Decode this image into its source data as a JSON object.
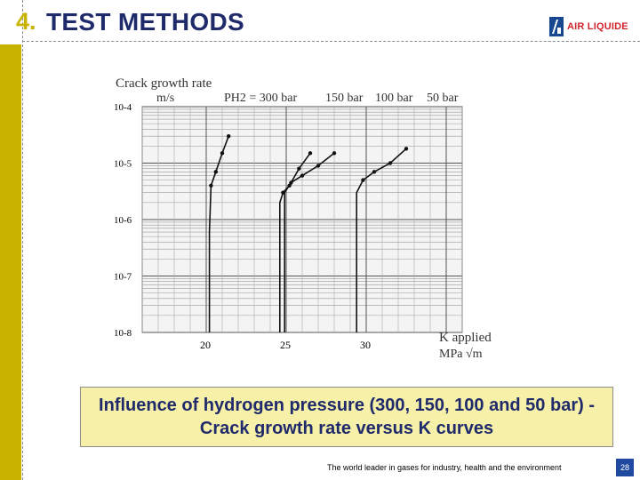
{
  "header": {
    "section_number": "4.",
    "title": "TEST METHODS",
    "logo_text": "AIR LIQUIDE"
  },
  "chart_data": {
    "type": "line",
    "ylabel": "Crack growth rate",
    "yunit": "m/s",
    "xlabel": "K applied",
    "xunit": "MPa √m",
    "yscale": "log",
    "ylim": [
      1e-08,
      0.0001
    ],
    "xlim": [
      16,
      36
    ],
    "ytick_labels": [
      "10-4",
      "10-5",
      "10-6",
      "10-7",
      "10-8"
    ],
    "xtick_labels": [
      "20",
      "25",
      "30"
    ],
    "xticks": [
      20,
      25,
      30
    ],
    "pressure_labels": [
      "PH2 = 300 bar",
      "150 bar",
      "100 bar",
      "50 bar"
    ],
    "grid": true,
    "series": [
      {
        "name": "300 bar",
        "points": [
          [
            20.2,
            1e-08
          ],
          [
            20.2,
            6e-07
          ],
          [
            20.3,
            4e-06
          ],
          [
            20.6,
            7e-06
          ],
          [
            21.0,
            1.5e-05
          ],
          [
            21.4,
            3e-05
          ]
        ]
      },
      {
        "name": "150 bar",
        "points": [
          [
            24.6,
            1e-08
          ],
          [
            24.6,
            2e-06
          ],
          [
            24.8,
            3e-06
          ],
          [
            25.2,
            4e-06
          ],
          [
            25.8,
            8e-06
          ],
          [
            26.5,
            1.5e-05
          ]
        ]
      },
      {
        "name": "100 bar",
        "points": [
          [
            24.9,
            1e-08
          ],
          [
            24.9,
            3e-06
          ],
          [
            25.3,
            4.5e-06
          ],
          [
            26.0,
            6e-06
          ],
          [
            27.0,
            9e-06
          ],
          [
            28.0,
            1.5e-05
          ]
        ]
      },
      {
        "name": "50 bar",
        "points": [
          [
            29.4,
            1e-08
          ],
          [
            29.4,
            3e-06
          ],
          [
            29.8,
            5e-06
          ],
          [
            30.5,
            7e-06
          ],
          [
            31.5,
            1e-05
          ],
          [
            32.5,
            1.8e-05
          ]
        ]
      }
    ]
  },
  "caption": "Influence of hydrogen pressure (300, 150, 100 and 50 bar) - Crack growth rate versus K curves",
  "footer": {
    "tagline": "The world leader in gases for industry, health and the environment",
    "page_number": "28"
  }
}
